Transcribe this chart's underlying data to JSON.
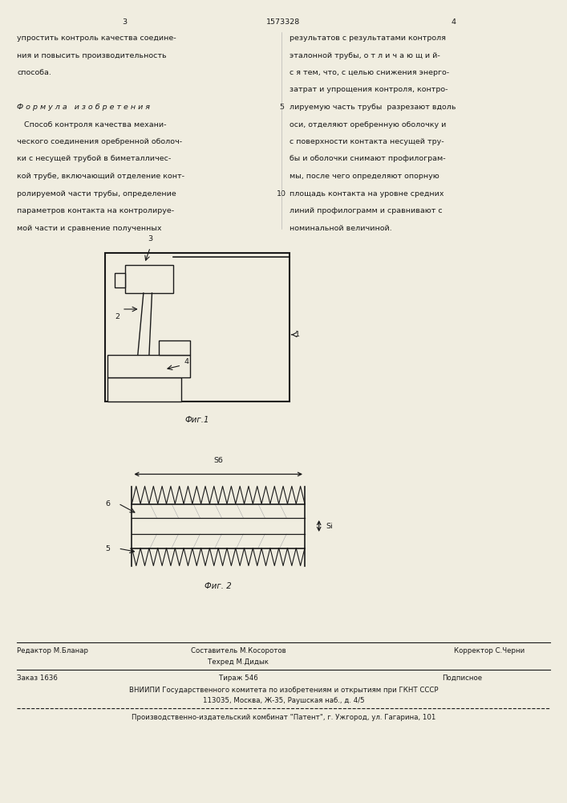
{
  "bg_color": "#f0ede0",
  "page_width": 7.07,
  "page_height": 10.0,
  "header": {
    "left_num": "3",
    "center_num": "1573328",
    "right_num": "4"
  },
  "left_col_text": [
    "упростить контроль качества соедине-",
    "ния и повысить производительность",
    "способа.",
    "",
    "Ф о р м у л а   и з о б р е т е н и я",
    "   Способ контроля качества механи-",
    "ческого соединения оребренной оболоч-",
    "ки с несущей трубой в биметалличес-",
    "кой трубе, включающий отделение конт-",
    "ролируемой части трубы, определение",
    "параметров контакта на контролируе-",
    "мой части и сравнение полученных"
  ],
  "right_col_text": [
    "результатов с результатами контроля",
    "эталонной трубы, о т л и ч а ю щ и й-",
    "с я тем, что, с целью снижения энерго-",
    "затрат и упрощения контроля, контро-",
    "лируемую часть трубы  разрезают вдоль",
    "оси, отделяют оребренную оболочку и",
    "с поверхности контакта несущей тру-",
    "бы и оболочки снимают профилограм-",
    "мы, после чего определяют опорную",
    "площадь контакта на уровне средних",
    "линий профилограмм и сравнивают с",
    "номинальной величиной."
  ],
  "line_numbers": {
    "5": 4,
    "10": 9
  },
  "fig1_caption": "Фиг.1",
  "fig2_caption": "Фиг. 2",
  "bottom_text": {
    "editor": "Редактор М.Бланар",
    "composer": "Составитель М.Косоротов",
    "corrector": "Корректор С.Черни",
    "techred": "Техред М.Дидык",
    "order": "Заказ 1636",
    "tirazh": "Тираж 546",
    "podpisnoe": "Подписное",
    "vniiipi": "ВНИИПИ Государственного комитета по изобретениям и открытиям при ГКНТ СССР",
    "address": "113035, Москва, Ж-35, Раушская наб., д. 4/5",
    "production": "Производственно-издательский комбинат \"Патент\", г. Ужгород, ул. Гагарина, 101"
  }
}
